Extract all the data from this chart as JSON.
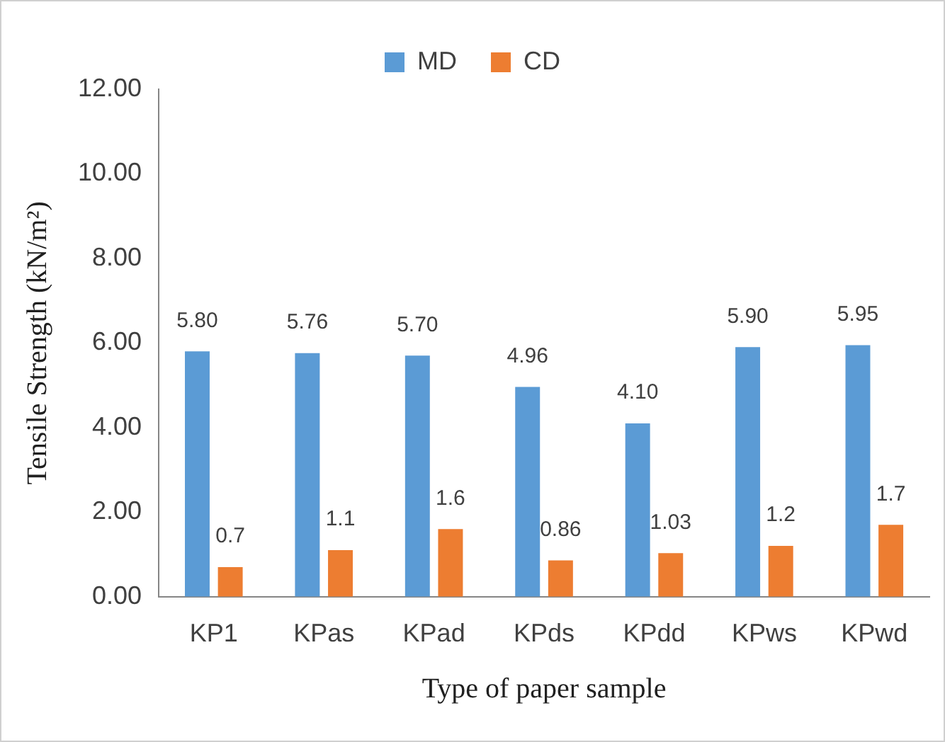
{
  "chart_data": {
    "type": "bar",
    "xlabel": "Type of paper sample",
    "ylabel": "Tensile Strength (kN/m²)",
    "categories": [
      "KP1",
      "KPas",
      "KPad",
      "KPds",
      "KPdd",
      "KPws",
      "KPwd"
    ],
    "series": [
      {
        "name": "MD",
        "color": "#5b9bd5",
        "values": [
          5.8,
          5.76,
          5.7,
          4.96,
          4.1,
          5.9,
          5.95
        ],
        "value_labels": [
          "5.80",
          "5.76",
          "5.70",
          "4.96",
          "4.10",
          "5.90",
          "5.95"
        ]
      },
      {
        "name": "CD",
        "color": "#ed7d31",
        "values": [
          0.7,
          1.1,
          1.6,
          0.86,
          1.03,
          1.2,
          1.7
        ],
        "value_labels": [
          "0.7",
          "1.1",
          "1.6",
          "0.86",
          "1.03",
          "1.2",
          "1.7"
        ]
      }
    ],
    "ylim": [
      0,
      12
    ],
    "yticks": [
      {
        "value": 0,
        "label": "0.00"
      },
      {
        "value": 2,
        "label": "2.00"
      },
      {
        "value": 4,
        "label": "4.00"
      },
      {
        "value": 6,
        "label": "6.00"
      },
      {
        "value": 8,
        "label": "8.00"
      },
      {
        "value": 10,
        "label": "10.00"
      },
      {
        "value": 12,
        "label": "12.00"
      }
    ],
    "grid": false,
    "legend": "top"
  }
}
